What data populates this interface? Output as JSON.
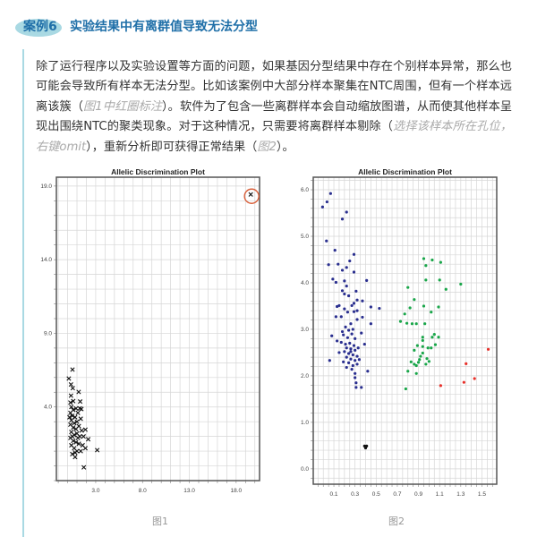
{
  "header": {
    "badge": "案例6",
    "title": "实验结果中有离群值导致无法分型"
  },
  "paragraph": [
    {
      "text": "除了运行程序以及实验设置等方面的问题，如果基因分型结果中存在个别样本异常，那么也可能会导致所有样本无法分型。比如该案例中大部分样本聚集在NTC周围，但有一个样本远离该簇（",
      "note": false
    },
    {
      "text": "图1中红圈标注",
      "note": true
    },
    {
      "text": "）。软件为了包含一些离群样本会自动缩放图谱，从而使其他样本呈现出围绕NTC的聚类现象。对于这种情况，只需要将离群样本剔除（",
      "note": false
    },
    {
      "text": "选择该样本所在孔位，右键omit",
      "note": true
    },
    {
      "text": "），重新分析即可获得正常结果（",
      "note": false
    },
    {
      "text": "图2",
      "note": true
    },
    {
      "text": "）。",
      "note": false
    }
  ],
  "colors": {
    "accent": "#1f6fa8",
    "badge": "#a9d9e3",
    "highlight_circle": "#d9603b"
  },
  "chart_data": [
    {
      "type": "scatter",
      "title": "Allelic Discrimination Plot",
      "caption": "图1",
      "xlim": [
        -1.2,
        20.5
      ],
      "ylim": [
        -1.0,
        19.6
      ],
      "xticks": [
        3.0,
        8.0,
        13.0,
        18.0
      ],
      "xtick_labels": [
        "3.0",
        "8.0",
        "13.0",
        "18.0"
      ],
      "yticks": [
        4.0,
        9.0,
        14.0,
        19.0
      ],
      "ytick_labels": [
        "4.0",
        "9.0",
        "14.0",
        "19.0"
      ],
      "grid": true,
      "marker": "x",
      "series": [
        {
          "color": "#111111",
          "points": [
            [
              0.52,
              6.54
            ],
            [
              0.13,
              5.93
            ],
            [
              0.36,
              5.53
            ],
            [
              0.55,
              5.28
            ],
            [
              1.18,
              5.02
            ],
            [
              0.36,
              4.77
            ],
            [
              1.34,
              4.37
            ],
            [
              1.47,
              3.86
            ],
            [
              3.16,
              1.07
            ],
            [
              1.73,
              -0.1
            ],
            [
              2.2,
              1.81
            ],
            [
              1.9,
              2.46
            ],
            [
              0.3,
              4.3
            ],
            [
              0.4,
              4.0
            ],
            [
              0.6,
              3.8
            ],
            [
              0.3,
              3.6
            ],
            [
              0.5,
              3.4
            ],
            [
              0.8,
              3.3
            ],
            [
              1.1,
              3.6
            ],
            [
              1.3,
              3.9
            ],
            [
              0.4,
              3.1
            ],
            [
              0.7,
              2.9
            ],
            [
              1.0,
              3.0
            ],
            [
              1.4,
              3.2
            ],
            [
              0.3,
              2.8
            ],
            [
              0.6,
              2.6
            ],
            [
              0.9,
              2.5
            ],
            [
              1.2,
              2.7
            ],
            [
              1.5,
              2.4
            ],
            [
              0.4,
              2.3
            ],
            [
              0.7,
              2.1
            ],
            [
              1.0,
              2.2
            ],
            [
              1.3,
              2.0
            ],
            [
              0.3,
              1.9
            ],
            [
              0.6,
              1.7
            ],
            [
              0.9,
              1.6
            ],
            [
              1.2,
              1.5
            ],
            [
              1.6,
              1.4
            ],
            [
              0.4,
              1.4
            ],
            [
              0.7,
              1.2
            ],
            [
              1.0,
              1.0
            ],
            [
              0.5,
              0.8
            ],
            [
              0.8,
              0.6
            ],
            [
              1.4,
              1.0
            ],
            [
              1.9,
              1.2
            ],
            [
              1.7,
              2.0
            ],
            [
              0.2,
              3.3
            ],
            [
              0.9,
              3.9
            ],
            [
              0.6,
              4.4
            ],
            [
              1.1,
              1.9
            ],
            [
              0.8,
              0.9
            ],
            [
              0.5,
              2.0
            ]
          ]
        },
        {
          "color": "#111111",
          "points": [
            [
              19.56,
              18.43
            ]
          ],
          "highlight": true
        }
      ]
    },
    {
      "type": "scatter",
      "title": "Allelic Discrimination Plot",
      "caption": "图2",
      "xlim": [
        -0.095,
        1.64
      ],
      "ylim": [
        -0.33,
        6.27
      ],
      "xticks": [
        0.1,
        0.3,
        0.5,
        0.7,
        0.9,
        1.1,
        1.3,
        1.5
      ],
      "xtick_labels": [
        "0.1",
        "0.3",
        "0.5",
        "0.7",
        "0.9",
        "1.1",
        "1.3",
        "1.5"
      ],
      "yticks": [
        0,
        1,
        2,
        3,
        4,
        5,
        6
      ],
      "ytick_labels": [
        "0.0",
        "1.0",
        "2.0",
        "3.0",
        "4.0",
        "5.0",
        "6.0"
      ],
      "grid": true,
      "marker": "dot",
      "series": [
        {
          "color": "#2a2f8f",
          "points": [
            [
              -0.007,
              5.63
            ],
            [
              0.035,
              5.74
            ],
            [
              0.069,
              5.92
            ],
            [
              0.22,
              5.52
            ],
            [
              0.18,
              5.37
            ],
            [
              0.03,
              4.9
            ],
            [
              0.11,
              4.7
            ],
            [
              0.05,
              4.39
            ],
            [
              0.29,
              4.61
            ],
            [
              0.25,
              4.47
            ],
            [
              0.14,
              4.4
            ],
            [
              0.18,
              4.27
            ],
            [
              0.22,
              4.33
            ],
            [
              0.29,
              4.23
            ],
            [
              0.09,
              4.08
            ],
            [
              0.12,
              4.01
            ],
            [
              0.2,
              4.04
            ],
            [
              0.41,
              4.05
            ],
            [
              0.22,
              3.93
            ],
            [
              0.18,
              3.83
            ],
            [
              0.31,
              3.82
            ],
            [
              0.24,
              3.72
            ],
            [
              0.2,
              3.76
            ],
            [
              0.32,
              3.63
            ],
            [
              0.37,
              3.61
            ],
            [
              0.45,
              3.48
            ],
            [
              0.53,
              3.45
            ],
            [
              0.13,
              3.49
            ],
            [
              0.15,
              3.51
            ],
            [
              0.27,
              3.51
            ],
            [
              0.29,
              3.56
            ],
            [
              0.2,
              3.44
            ],
            [
              0.23,
              3.37
            ],
            [
              0.29,
              3.38
            ],
            [
              0.32,
              3.4
            ],
            [
              0.32,
              3.21
            ],
            [
              0.37,
              3.26
            ],
            [
              0.12,
              3.27
            ],
            [
              0.17,
              3.27
            ],
            [
              0.45,
              3.12
            ],
            [
              0.26,
              3.12
            ],
            [
              0.06,
              2.33
            ],
            [
              0.15,
              2.5
            ],
            [
              0.42,
              2.1
            ],
            [
              0.3,
              1.96
            ],
            [
              0.31,
              1.85
            ],
            [
              0.31,
              1.75
            ],
            [
              0.36,
              1.75
            ],
            [
              0.39,
              2.68
            ],
            [
              0.36,
              2.92
            ],
            [
              0.08,
              2.86
            ],
            [
              0.13,
              2.75
            ],
            [
              0.21,
              3.05
            ],
            [
              0.24,
              2.98
            ],
            [
              0.28,
              3.0
            ],
            [
              0.19,
              2.88
            ],
            [
              0.23,
              2.82
            ],
            [
              0.27,
              2.9
            ],
            [
              0.3,
              2.8
            ],
            [
              0.17,
              2.72
            ],
            [
              0.21,
              2.68
            ],
            [
              0.25,
              2.7
            ],
            [
              0.29,
              2.65
            ],
            [
              0.22,
              2.6
            ],
            [
              0.26,
              2.58
            ],
            [
              0.3,
              2.55
            ],
            [
              0.33,
              2.6
            ],
            [
              0.2,
              2.52
            ],
            [
              0.24,
              2.48
            ],
            [
              0.28,
              2.45
            ],
            [
              0.32,
              2.42
            ],
            [
              0.22,
              2.4
            ],
            [
              0.26,
              2.36
            ],
            [
              0.3,
              2.33
            ],
            [
              0.24,
              2.28
            ],
            [
              0.28,
              2.22
            ],
            [
              0.32,
              2.25
            ],
            [
              0.22,
              2.18
            ],
            [
              0.27,
              2.14
            ],
            [
              0.3,
              2.05
            ],
            [
              0.19,
              2.3
            ],
            [
              0.34,
              2.35
            ],
            [
              0.18,
              2.95
            ],
            [
              0.26,
              2.52
            ]
          ]
        },
        {
          "color": "#1aa64a",
          "points": [
            [
              0.95,
              4.52
            ],
            [
              1.03,
              4.49
            ],
            [
              1.11,
              4.44
            ],
            [
              0.97,
              4.37
            ],
            [
              0.97,
              4.06
            ],
            [
              1.1,
              4.06
            ],
            [
              1.3,
              3.97
            ],
            [
              1.16,
              3.86
            ],
            [
              0.8,
              3.9
            ],
            [
              0.86,
              3.64
            ],
            [
              0.82,
              3.46
            ],
            [
              0.95,
              3.5
            ],
            [
              1.02,
              3.37
            ],
            [
              1.09,
              3.48
            ],
            [
              0.77,
              3.33
            ],
            [
              0.73,
              3.17
            ],
            [
              0.79,
              3.13
            ],
            [
              0.84,
              3.12
            ],
            [
              0.88,
              3.12
            ],
            [
              0.96,
              3.12
            ],
            [
              0.94,
              2.83
            ],
            [
              0.94,
              2.76
            ],
            [
              1.05,
              2.89
            ],
            [
              1.03,
              2.83
            ],
            [
              1.09,
              2.83
            ],
            [
              0.89,
              2.65
            ],
            [
              0.94,
              2.63
            ],
            [
              0.99,
              2.6
            ],
            [
              1.02,
              2.6
            ],
            [
              1.06,
              2.67
            ],
            [
              0.86,
              2.55
            ],
            [
              0.94,
              2.49
            ],
            [
              0.92,
              2.42
            ],
            [
              0.91,
              2.35
            ],
            [
              0.98,
              2.37
            ],
            [
              1.0,
              2.31
            ],
            [
              0.83,
              2.3
            ],
            [
              0.86,
              2.25
            ],
            [
              0.88,
              2.22
            ],
            [
              0.97,
              2.25
            ],
            [
              0.8,
              2.1
            ],
            [
              0.88,
              2.05
            ],
            [
              0.78,
              1.72
            ],
            [
              0.9,
              2.29
            ]
          ]
        },
        {
          "color": "#e8302a",
          "points": [
            [
              1.56,
              2.57
            ],
            [
              1.35,
              2.26
            ],
            [
              1.43,
              1.94
            ],
            [
              1.33,
              1.86
            ],
            [
              1.11,
              1.79
            ]
          ]
        },
        {
          "color": "#111111",
          "points": [
            [
              0.39,
              0.49
            ],
            [
              0.41,
              0.49
            ],
            [
              0.4,
              0.45
            ]
          ]
        }
      ]
    }
  ]
}
